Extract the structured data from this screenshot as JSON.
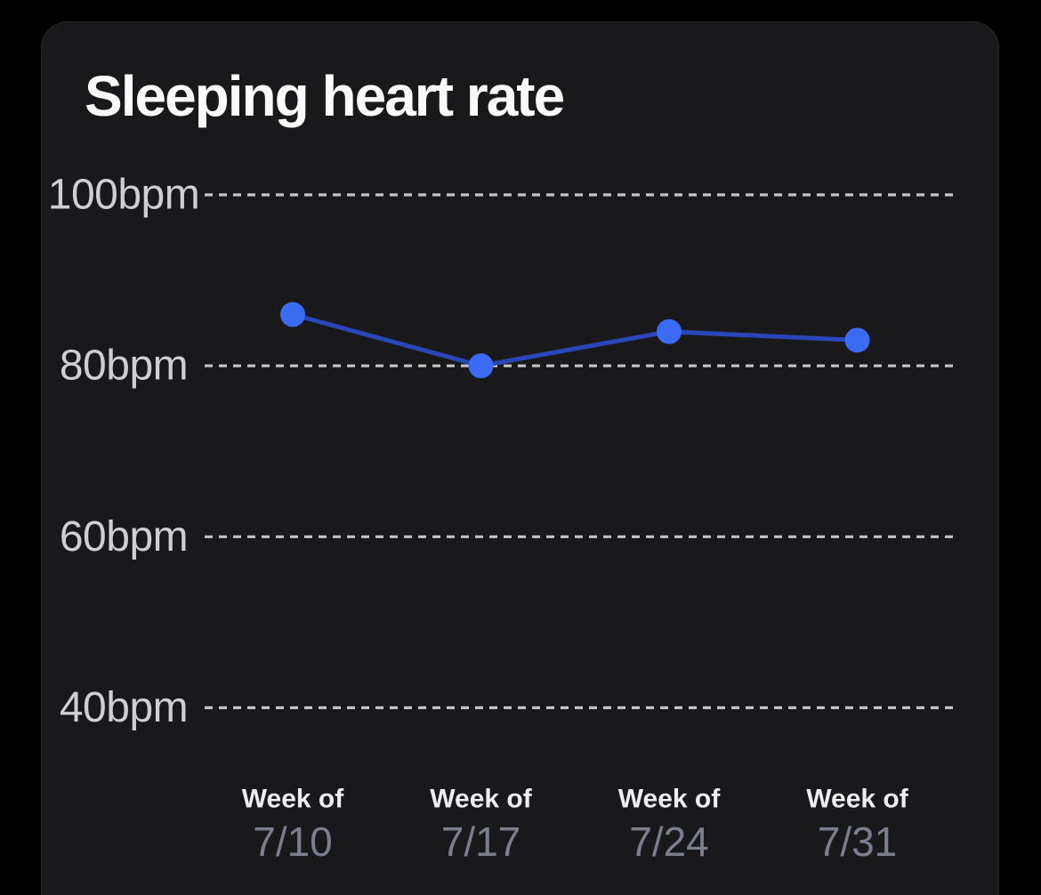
{
  "card": {
    "title": "Sleeping heart rate"
  },
  "chart_data": {
    "type": "line",
    "title": "Sleeping heart rate",
    "unit": "bpm",
    "categories_prefix": "Week of",
    "categories": [
      "7/10",
      "7/17",
      "7/24",
      "7/31"
    ],
    "values": [
      86,
      80,
      84,
      83
    ],
    "yticks": [
      100,
      80,
      60,
      40
    ],
    "ytick_labels": [
      "100bpm",
      "80bpm",
      "60bpm",
      "40bpm"
    ],
    "ylim": [
      40,
      100
    ],
    "grid": "horizontal-dashed",
    "legend": "none",
    "colors": {
      "page_bg": "#000000",
      "card_bg": "#19191b",
      "title_text": "#fafafa",
      "point": "#3a6bf2",
      "line": "#2946b8",
      "grid": "#c4c4c6",
      "ytick_text": "#cfcfd1",
      "week_of_text": "#eeeef0",
      "date_text": "#7b7e8c"
    }
  }
}
